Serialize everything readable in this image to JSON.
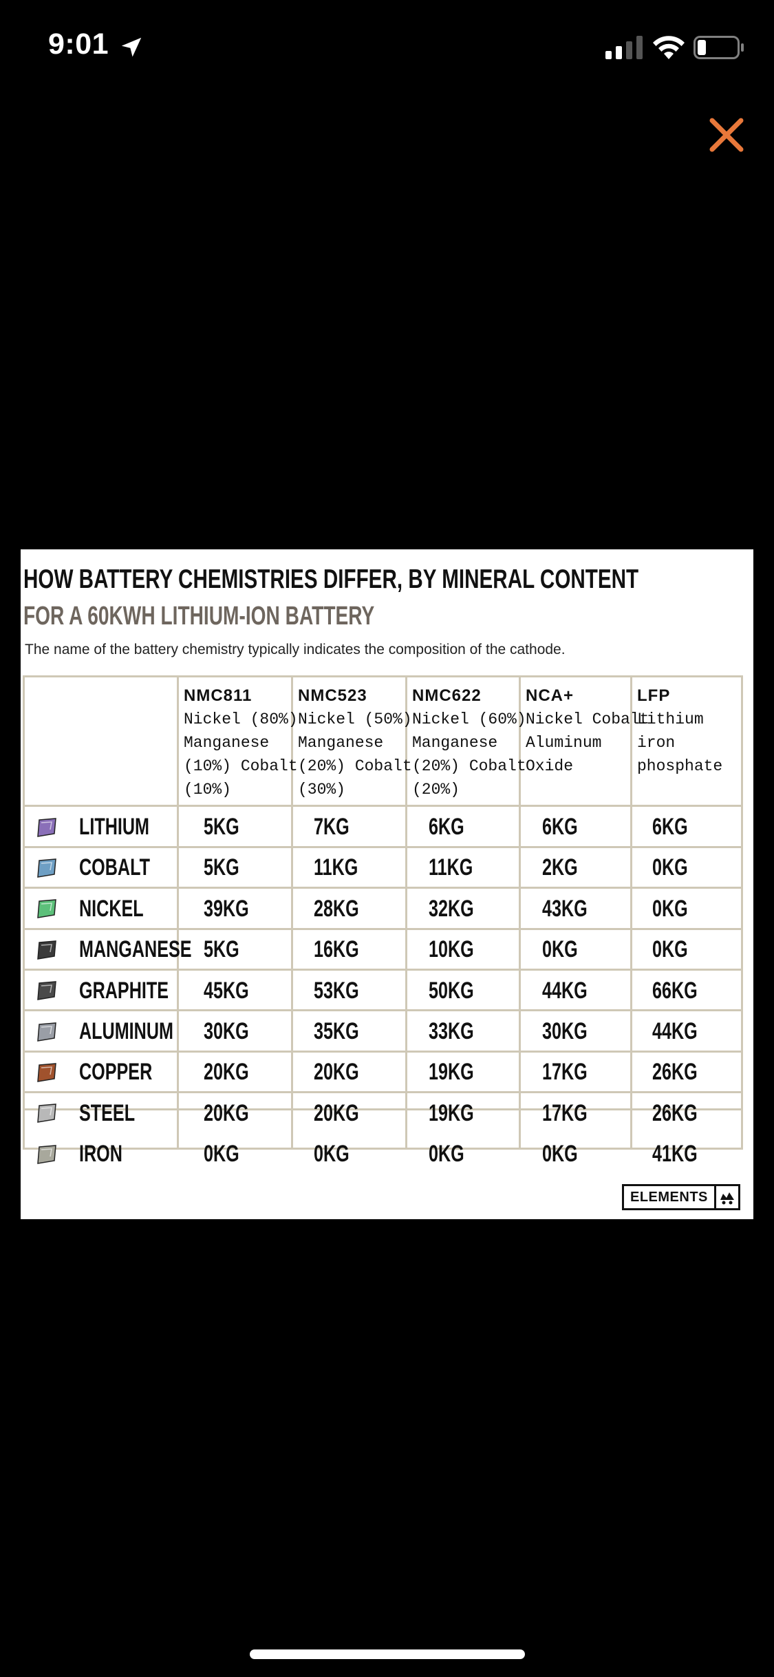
{
  "status_bar": {
    "time": "9:01"
  },
  "infographic": {
    "title": "HOW BATTERY CHEMISTRIES DIFFER, BY MINERAL CONTENT",
    "subtitle": "FOR A 60KWH LITHIUM-ION BATTERY",
    "description": "The name of the battery chemistry typically indicates the composition of the cathode.",
    "columns": [
      {
        "name": "NMC811",
        "desc": "Nickel (80%)\nManganese\n(10%) Cobalt\n(10%)"
      },
      {
        "name": "NMC523",
        "desc": "Nickel (50%)\nManganese\n(20%) Cobalt\n(30%)"
      },
      {
        "name": "NMC622",
        "desc": "Nickel (60%)\nManganese\n(20%) Cobalt\n(20%)"
      },
      {
        "name": "NCA+",
        "desc": "Nickel Cobalt\nAluminum\nOxide"
      },
      {
        "name": "LFP",
        "desc": "Lithium iron\nphosphate"
      }
    ],
    "rows": [
      {
        "mineral": "LITHIUM",
        "icon": "lithium-icon",
        "color": "#8a6fb8",
        "values": [
          "5KG",
          "7KG",
          "6KG",
          "6KG",
          "6KG"
        ]
      },
      {
        "mineral": "COBALT",
        "icon": "cobalt-icon",
        "color": "#6e9fc4",
        "values": [
          "5KG",
          "11KG",
          "11KG",
          "2KG",
          "0KG"
        ]
      },
      {
        "mineral": "NICKEL",
        "icon": "nickel-icon",
        "color": "#5cc07a",
        "values": [
          "39KG",
          "28KG",
          "32KG",
          "43KG",
          "0KG"
        ]
      },
      {
        "mineral": "MANGANESE",
        "icon": "manganese-icon",
        "color": "#3a3a3a",
        "values": [
          "5KG",
          "16KG",
          "10KG",
          "0KG",
          "0KG"
        ]
      },
      {
        "mineral": "GRAPHITE",
        "icon": "graphite-icon",
        "color": "#4a4a4a",
        "values": [
          "45KG",
          "53KG",
          "50KG",
          "44KG",
          "66KG"
        ]
      },
      {
        "mineral": "ALUMINUM",
        "icon": "aluminum-icon",
        "color": "#9a9ea6",
        "values": [
          "30KG",
          "35KG",
          "33KG",
          "30KG",
          "44KG"
        ]
      },
      {
        "mineral": "COPPER",
        "icon": "copper-icon",
        "color": "#a0522d",
        "values": [
          "20KG",
          "20KG",
          "19KG",
          "17KG",
          "26KG"
        ]
      },
      {
        "mineral": "STEEL",
        "icon": "steel-icon",
        "color": "#b8b8b8",
        "values": [
          "20KG",
          "20KG",
          "19KG",
          "17KG",
          "26KG"
        ]
      },
      {
        "mineral": "IRON",
        "icon": "iron-icon",
        "color": "#a8a89c",
        "values": [
          "0KG",
          "0KG",
          "0KG",
          "0KG",
          "41KG"
        ]
      }
    ],
    "brand": "ELEMENTS"
  },
  "colors": {
    "close_accent": "#e8783a",
    "grid": "#cfc8b6",
    "subtitle": "#6e665e"
  }
}
